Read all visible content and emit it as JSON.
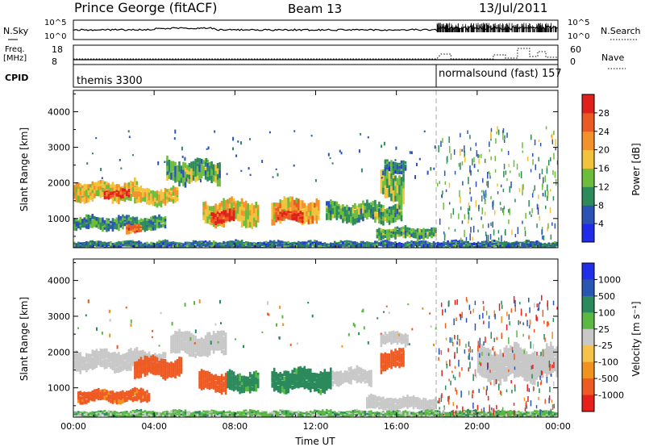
{
  "header": {
    "station": "Prince George (fitACF)",
    "beam": "Beam 13",
    "date": "13/Jul/2011"
  },
  "strip_panels": {
    "nsky": {
      "label": "N.Sky",
      "right_label": "N.Search",
      "left_ticks": [
        "10^5",
        "10^0"
      ],
      "right_ticks": [
        "10^5",
        "10^0"
      ]
    },
    "freq": {
      "label_line1": "Freq.",
      "label_line2": "[MHz]",
      "right_label": "Nave",
      "left_ticks": [
        "18",
        "8"
      ],
      "right_ticks": [
        "60",
        "0"
      ]
    },
    "cpid": {
      "label": "CPID",
      "modes": [
        {
          "text": "themis 3300",
          "start_hour": 0
        },
        {
          "text": "normalsound (fast) 157",
          "start_hour": 18
        }
      ]
    }
  },
  "colors": {
    "power": [
      "#1f2be8",
      "#2a53b5",
      "#2d8a5a",
      "#6dbd3c",
      "#f2c23a",
      "#f3922a",
      "#ea5a22",
      "#e0201c"
    ],
    "velocity": [
      "#e8201c",
      "#ee5a22",
      "#f1921e",
      "#f6c24a",
      "#c8c8c8",
      "#5ab843",
      "#2a8a5c",
      "#2a56b3",
      "#1f2ee8"
    ]
  },
  "chart_data": [
    {
      "type": "heatmap",
      "name": "power",
      "xlabel": "",
      "ylabel": "Slant Range [km]",
      "xlim": [
        "00:00",
        "24:00"
      ],
      "ylim": [
        180,
        4600
      ],
      "y_ticks": [
        1000,
        2000,
        3000,
        4000
      ],
      "colorbar_label": "Power [dB]",
      "colorbar_ticks": [
        4,
        8,
        12,
        16,
        20,
        24,
        28
      ],
      "colorbar_range": [
        0,
        32
      ],
      "x_ticks_hours": [
        0,
        4,
        8,
        12,
        16,
        20,
        24
      ],
      "echo_regions": [
        {
          "t0": 0.0,
          "t1": 3.2,
          "r0": 1500,
          "r1": 2100,
          "value": 18
        },
        {
          "t0": 1.5,
          "t1": 2.8,
          "r0": 1600,
          "r1": 1850,
          "value": 28
        },
        {
          "t0": 0.0,
          "t1": 4.6,
          "r0": 700,
          "r1": 1100,
          "value": 10
        },
        {
          "t0": 2.6,
          "t1": 3.4,
          "r0": 600,
          "r1": 850,
          "value": 24
        },
        {
          "t0": 3.0,
          "t1": 5.2,
          "r0": 1400,
          "r1": 1900,
          "value": 18
        },
        {
          "t0": 4.6,
          "t1": 7.3,
          "r0": 2000,
          "r1": 2700,
          "value": 12
        },
        {
          "t0": 6.4,
          "t1": 9.2,
          "r0": 800,
          "r1": 1600,
          "value": 18
        },
        {
          "t0": 6.8,
          "t1": 8.0,
          "r0": 900,
          "r1": 1300,
          "value": 28
        },
        {
          "t0": 9.8,
          "t1": 12.2,
          "r0": 900,
          "r1": 1600,
          "value": 20
        },
        {
          "t0": 10.0,
          "t1": 11.4,
          "r0": 950,
          "r1": 1250,
          "value": 28
        },
        {
          "t0": 12.5,
          "t1": 16.3,
          "r0": 900,
          "r1": 1500,
          "value": 12
        },
        {
          "t0": 15.2,
          "t1": 16.4,
          "r0": 1500,
          "r1": 2400,
          "value": 14
        },
        {
          "t0": 15.4,
          "t1": 16.5,
          "r0": 2300,
          "r1": 2700,
          "value": 8
        },
        {
          "t0": 15.0,
          "t1": 18.0,
          "r0": 450,
          "r1": 800,
          "value": 12
        },
        {
          "t0": 0.0,
          "t1": 24.0,
          "r0": 200,
          "r1": 400,
          "value": 8
        }
      ]
    },
    {
      "type": "heatmap",
      "name": "velocity",
      "xlabel": "Time UT",
      "ylabel": "Slant Range [km]",
      "xlim": [
        "00:00",
        "24:00"
      ],
      "ylim": [
        180,
        4600
      ],
      "y_ticks": [
        1000,
        2000,
        3000,
        4000
      ],
      "x_tick_labels": [
        "00:00",
        "04:00",
        "08:00",
        "12:00",
        "16:00",
        "20:00",
        "00:00"
      ],
      "x_ticks_hours": [
        0,
        4,
        8,
        12,
        16,
        20,
        24
      ],
      "colorbar_label": "Velocity [m s⁻¹]",
      "colorbar_ticks": [
        "1000",
        "500",
        "100",
        "25",
        "-25",
        "-100",
        "-500",
        "-1000"
      ],
      "echo_regions": [
        {
          "t0": 0.0,
          "t1": 4.6,
          "r0": 1500,
          "r1": 2100,
          "value": 0
        },
        {
          "t0": 0.2,
          "t1": 3.8,
          "r0": 600,
          "r1": 1000,
          "value": -150
        },
        {
          "t0": 3.0,
          "t1": 5.4,
          "r0": 1300,
          "r1": 1900,
          "value": -200
        },
        {
          "t0": 4.8,
          "t1": 7.6,
          "r0": 1900,
          "r1": 2600,
          "value": 0
        },
        {
          "t0": 6.2,
          "t1": 7.6,
          "r0": 900,
          "r1": 1500,
          "value": -200
        },
        {
          "t0": 7.6,
          "t1": 9.2,
          "r0": 900,
          "r1": 1500,
          "value": 150
        },
        {
          "t0": 9.8,
          "t1": 12.8,
          "r0": 900,
          "r1": 1600,
          "value": 150
        },
        {
          "t0": 12.8,
          "t1": 14.8,
          "r0": 1100,
          "r1": 1600,
          "value": 0
        },
        {
          "t0": 15.2,
          "t1": 16.4,
          "r0": 1500,
          "r1": 2100,
          "value": -200
        },
        {
          "t0": 15.2,
          "t1": 16.6,
          "r0": 2200,
          "r1": 2600,
          "value": 0
        },
        {
          "t0": 14.5,
          "t1": 18.0,
          "r0": 400,
          "r1": 800,
          "value": 0
        },
        {
          "t0": 20.0,
          "t1": 24.0,
          "r0": 1200,
          "r1": 2200,
          "value": 0
        },
        {
          "t0": 0.0,
          "t1": 24.0,
          "r0": 200,
          "r1": 400,
          "value": 60
        }
      ]
    }
  ]
}
